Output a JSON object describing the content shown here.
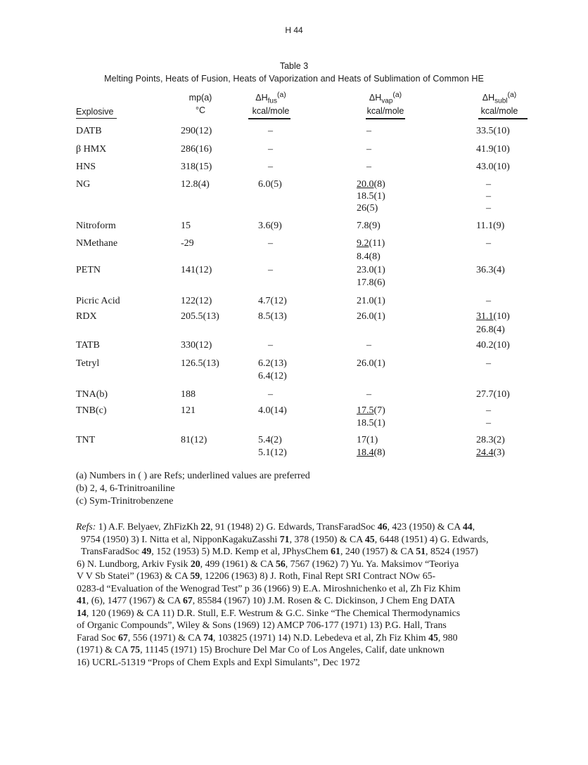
{
  "page_number": "H 44",
  "table": {
    "number": "Table 3",
    "title": "Melting Points, Heats of Fusion, Heats of Vaporization and Heats of Sublimation of Common HE",
    "headers": {
      "explosive": "Explosive",
      "mp": {
        "top": "mp(a)",
        "unit": "°C"
      },
      "fus": {
        "base": "ΔH",
        "sub": "fus",
        "sup": "(a)",
        "unit": "kcal/mole"
      },
      "vap": {
        "base": "ΔH",
        "sub": "vap",
        "sup": "(a)",
        "unit": "kcal/mole"
      },
      "subl": {
        "base": "ΔH",
        "sub": "subl",
        "sup": "(a)",
        "unit": "kcal/mole"
      }
    },
    "rows": [
      {
        "explosive": "DATB",
        "lines": [
          [
            {
              "v": "290(12)"
            },
            {
              "v": "–"
            },
            {
              "v": "–"
            },
            {
              "v": "33.5(10)"
            }
          ]
        ]
      },
      {
        "explosive": "β HMX",
        "lines": [
          [
            {
              "v": "286(16)"
            },
            {
              "v": "–"
            },
            {
              "v": "–"
            },
            {
              "v": "41.9(10)"
            }
          ]
        ]
      },
      {
        "explosive": "HNS",
        "lines": [
          [
            {
              "v": "318(15)"
            },
            {
              "v": "–"
            },
            {
              "v": "–"
            },
            {
              "v": "43.0(10)"
            }
          ]
        ]
      },
      {
        "explosive": "NG",
        "lines": [
          [
            {
              "v": "12.8(4)"
            },
            {
              "v": "6.0(5)"
            },
            {
              "v": "20.0",
              "r": "(8)",
              "u": true
            },
            {
              "v": "–"
            }
          ],
          [
            {
              "v": ""
            },
            {
              "v": ""
            },
            {
              "v": "18.5(1)"
            },
            {
              "v": "–"
            }
          ],
          [
            {
              "v": ""
            },
            {
              "v": ""
            },
            {
              "v": "26(5)"
            },
            {
              "v": "–"
            }
          ]
        ]
      },
      {
        "explosive": "Nitroform",
        "lines": [
          [
            {
              "v": "15"
            },
            {
              "v": "3.6(9)"
            },
            {
              "v": "7.8(9)"
            },
            {
              "v": "11.1(9)"
            }
          ]
        ]
      },
      {
        "explosive": "NMethane",
        "lines": [
          [
            {
              "v": "-29"
            },
            {
              "v": "–"
            },
            {
              "v": "9.2",
              "r": "(11)",
              "u": true
            },
            {
              "v": "–"
            }
          ],
          [
            {
              "v": ""
            },
            {
              "v": ""
            },
            {
              "v": "8.4(8)"
            },
            {
              "v": ""
            }
          ]
        ]
      },
      {
        "explosive": "PETN",
        "lines": [
          [
            {
              "v": "141(12)"
            },
            {
              "v": "–"
            },
            {
              "v": "23.0(1)"
            },
            {
              "v": "36.3(4)"
            }
          ],
          [
            {
              "v": ""
            },
            {
              "v": ""
            },
            {
              "v": "17.8(6)"
            },
            {
              "v": ""
            }
          ]
        ]
      },
      {
        "explosive": "Picric Acid",
        "lines": [
          [
            {
              "v": "122(12)"
            },
            {
              "v": "4.7(12)"
            },
            {
              "v": "21.0(1)"
            },
            {
              "v": "–"
            }
          ]
        ]
      },
      {
        "explosive": "RDX",
        "lines": [
          [
            {
              "v": "205.5(13)"
            },
            {
              "v": "8.5(13)"
            },
            {
              "v": "26.0(1)"
            },
            {
              "v": "31.1",
              "r": "(10)",
              "u": true
            }
          ],
          [
            {
              "v": ""
            },
            {
              "v": ""
            },
            {
              "v": ""
            },
            {
              "v": "26.8(4)"
            }
          ]
        ]
      },
      {
        "explosive": "TATB",
        "lines": [
          [
            {
              "v": "330(12)"
            },
            {
              "v": "–"
            },
            {
              "v": "–"
            },
            {
              "v": "40.2(10)"
            }
          ]
        ]
      },
      {
        "explosive": "Tetryl",
        "lines": [
          [
            {
              "v": "126.5(13)"
            },
            {
              "v": "6.2(13)"
            },
            {
              "v": "26.0(1)"
            },
            {
              "v": "–"
            }
          ],
          [
            {
              "v": ""
            },
            {
              "v": "6.4(12)"
            },
            {
              "v": ""
            },
            {
              "v": ""
            }
          ]
        ]
      },
      {
        "explosive": "TNA(b)",
        "lines": [
          [
            {
              "v": "188"
            },
            {
              "v": "–"
            },
            {
              "v": "–"
            },
            {
              "v": "27.7(10)"
            }
          ]
        ]
      },
      {
        "explosive": "TNB(c)",
        "lines": [
          [
            {
              "v": "121"
            },
            {
              "v": "4.0(14)"
            },
            {
              "v": "17.5",
              "r": "(7)",
              "u": true
            },
            {
              "v": "–"
            }
          ],
          [
            {
              "v": ""
            },
            {
              "v": ""
            },
            {
              "v": "18.5(1)"
            },
            {
              "v": "–"
            }
          ]
        ]
      },
      {
        "explosive": "TNT",
        "lines": [
          [
            {
              "v": "81(12)"
            },
            {
              "v": "5.4(2)"
            },
            {
              "v": "17(1)"
            },
            {
              "v": "28.3(2)"
            }
          ],
          [
            {
              "v": ""
            },
            {
              "v": "5.1(12)"
            },
            {
              "v": "18.4",
              "r": "(8)",
              "u": true
            },
            {
              "v": "24.4",
              "r": "(3)",
              "u": true
            }
          ]
        ]
      }
    ]
  },
  "footnotes": [
    "(a)  Numbers in ( ) are Refs; underlined values are preferred",
    "(b)  2, 4, 6-Trinitroaniline",
    "(c)  Sym-Trinitrobenzene"
  ],
  "refs_label": "Refs:",
  "refs_lines": [
    [
      " 1) A.F. Belyaev, ZhFizKh ",
      "22",
      ", 91 (1948)  2) G. Edwards, TransFaradSoc ",
      "46",
      ", 423 (1950) & CA ",
      "44",
      ","
    ],
    [
      "9754 (1950)  3) I. Nitta et al, NipponKagakuZasshi ",
      "71",
      ", 378 (1950) & CA ",
      "45",
      ", 6448 (1951)  4) G. Edwards,"
    ],
    [
      "TransFaradSoc ",
      "49",
      ", 152 (1953)  5) M.D. Kemp et al, JPhysChem ",
      "61",
      ", 240 (1957) & CA ",
      "51",
      ", 8524 (1957)"
    ],
    [
      "6) N. Lundborg, Arkiv Fysik ",
      "20",
      ", 499 (1961) & CA ",
      "56",
      ", 7567 (1962)  7) Yu. Ya. Maksimov “Teoriya"
    ],
    [
      "V V  Sb Statei” (1963) & CA ",
      "59",
      ", 12206 (1963)  8) J. Roth, Final Rept SRI Contract NOw 65-"
    ],
    [
      "0283-d “Evaluation of the Wenograd Test” p 36 (1966)  9) E.A. Miroshnichenko et al, Zh Fiz Khim"
    ],
    [
      "",
      "41",
      ", (6), 1477 (1967) & CA ",
      "67",
      ", 85584 (1967)  10) J.M. Rosen & C. Dickinson, J Chem Eng DATA"
    ],
    [
      "",
      "14",
      ", 120 (1969) & CA  11) D.R. Stull, E.F. Westrum & G.C. Sinke  “The  Chemical Thermodynamics"
    ],
    [
      "of Organic Compounds”, Wiley & Sons (1969)  12) AMCP 706-177 (1971)  13) P.G. Hall, Trans"
    ],
    [
      "Farad Soc ",
      "67",
      ", 556 (1971) & CA ",
      "74",
      ", 103825 (1971)  14) N.D. Lebedeva et al, Zh Fiz Khim ",
      "45",
      ", 980"
    ],
    [
      "(1971) & CA ",
      "75",
      ", 11145 (1971)  15) Brochure Del Mar Co of Los Angeles, Calif, date unknown"
    ],
    [
      "16) UCRL-51319 “Props of Chem Expls and Expl Simulants”, Dec 1972"
    ]
  ]
}
